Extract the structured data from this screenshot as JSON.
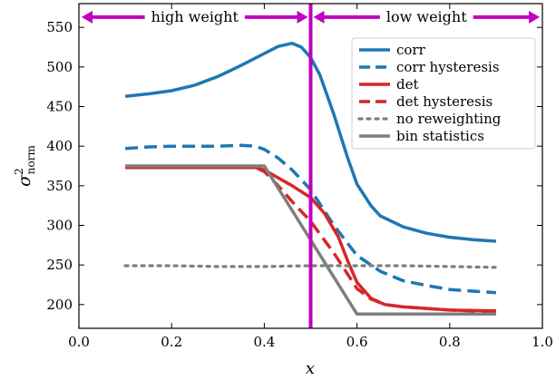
{
  "chart_data": {
    "type": "line",
    "xlabel": "x",
    "ylabel": "σ²norm",
    "ylabel_main": "σ",
    "ylabel_sup": "2",
    "ylabel_sub": "norm",
    "xlim": [
      0.0,
      1.0
    ],
    "ylim": [
      170,
      580
    ],
    "xticks": [
      0.0,
      0.2,
      0.4,
      0.6,
      0.8,
      1.0
    ],
    "xtick_labels": [
      "0.0",
      "0.2",
      "0.4",
      "0.6",
      "0.8",
      "1.0"
    ],
    "yticks": [
      200,
      250,
      300,
      350,
      400,
      450,
      500,
      550
    ],
    "ytick_labels": [
      "200",
      "250",
      "300",
      "350",
      "400",
      "450",
      "500",
      "550"
    ],
    "grid": false,
    "legend_position": "top-right",
    "vline": {
      "x": 0.5,
      "color": "#bf00bf"
    },
    "annotations": [
      {
        "text": "high weight",
        "x_start": 0.0,
        "x_end": 0.5,
        "y": 563,
        "color": "#bf00bf"
      },
      {
        "text": "low weight",
        "x_start": 0.5,
        "x_end": 1.0,
        "y": 563,
        "color": "#bf00bf"
      }
    ],
    "series": [
      {
        "name": "corr",
        "color": "#1f77b4",
        "dash": "solid",
        "x": [
          0.1,
          0.15,
          0.2,
          0.25,
          0.3,
          0.35,
          0.4,
          0.43,
          0.46,
          0.48,
          0.5,
          0.52,
          0.55,
          0.58,
          0.6,
          0.63,
          0.65,
          0.7,
          0.75,
          0.8,
          0.85,
          0.9
        ],
        "y": [
          463,
          466,
          470,
          477,
          488,
          502,
          517,
          526,
          530,
          525,
          512,
          490,
          440,
          385,
          352,
          325,
          312,
          298,
          290,
          285,
          282,
          280
        ]
      },
      {
        "name": "corr hysteresis",
        "color": "#1f77b4",
        "dash": "dashed",
        "x": [
          0.1,
          0.15,
          0.2,
          0.25,
          0.3,
          0.35,
          0.38,
          0.4,
          0.43,
          0.46,
          0.5,
          0.55,
          0.6,
          0.65,
          0.7,
          0.75,
          0.8,
          0.85,
          0.9
        ],
        "y": [
          397,
          399,
          400,
          400,
          400,
          401,
          400,
          396,
          385,
          370,
          345,
          300,
          262,
          242,
          230,
          224,
          219,
          217,
          215
        ]
      },
      {
        "name": "det",
        "color": "#d62728",
        "dash": "solid",
        "x": [
          0.1,
          0.2,
          0.3,
          0.38,
          0.4,
          0.43,
          0.46,
          0.5,
          0.53,
          0.56,
          0.58,
          0.6,
          0.63,
          0.66,
          0.7,
          0.8,
          0.9
        ],
        "y": [
          373,
          373,
          373,
          373,
          370,
          360,
          350,
          335,
          315,
          285,
          255,
          228,
          208,
          200,
          197,
          193,
          192
        ]
      },
      {
        "name": "det hysteresis",
        "color": "#d62728",
        "dash": "dashed",
        "x": [
          0.1,
          0.2,
          0.3,
          0.38,
          0.4,
          0.43,
          0.46,
          0.5,
          0.55,
          0.6,
          0.63,
          0.66,
          0.7,
          0.8,
          0.9
        ],
        "y": [
          373,
          373,
          373,
          373,
          368,
          350,
          330,
          305,
          265,
          220,
          207,
          200,
          197,
          193,
          191
        ]
      },
      {
        "name": "no reweighting",
        "color": "#7f7f7f",
        "dash": "dotted",
        "x": [
          0.1,
          0.2,
          0.3,
          0.4,
          0.5,
          0.6,
          0.7,
          0.8,
          0.9
        ],
        "y": [
          249,
          249,
          248,
          248,
          249,
          249,
          249,
          248,
          247
        ]
      },
      {
        "name": "bin statistics",
        "color": "#7f7f7f",
        "dash": "solid",
        "x": [
          0.1,
          0.4,
          0.6,
          0.9
        ],
        "y": [
          375,
          375,
          188,
          188
        ]
      }
    ]
  }
}
